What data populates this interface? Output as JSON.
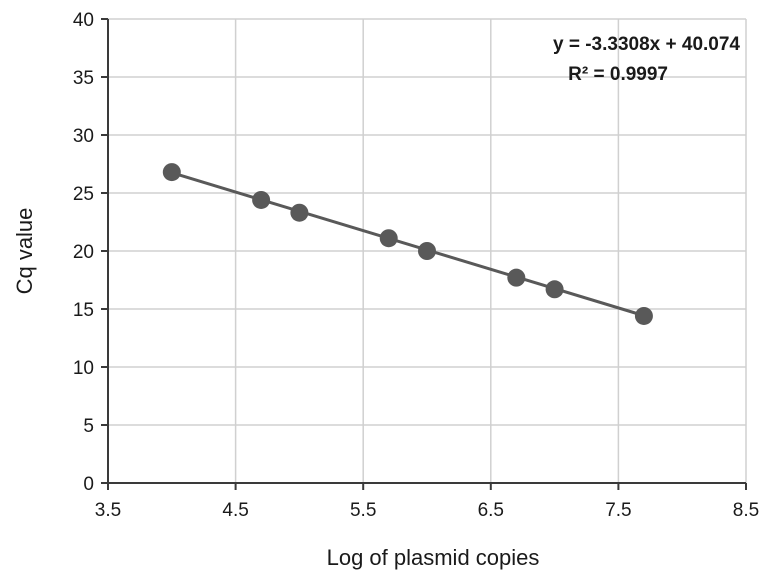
{
  "chart_data": {
    "type": "scatter",
    "title": "",
    "xlabel": "Log of plasmid copies",
    "ylabel": "Cq value",
    "xlim": [
      3.5,
      8.5
    ],
    "ylim": [
      0,
      40
    ],
    "x_ticks": [
      "3.5",
      "4.5",
      "5.5",
      "6.5",
      "7.5",
      "8.5"
    ],
    "y_ticks": [
      "0",
      "5",
      "10",
      "15",
      "20",
      "25",
      "30",
      "35",
      "40"
    ],
    "x_tick_values": [
      3.5,
      4.5,
      5.5,
      6.5,
      7.5,
      8.5
    ],
    "y_tick_values": [
      0,
      5,
      10,
      15,
      20,
      25,
      30,
      35,
      40
    ],
    "grid": true,
    "legend": "none",
    "series": [
      {
        "x": [
          4.0,
          4.7,
          5.0,
          5.7,
          6.0,
          6.7,
          7.0,
          7.7
        ],
        "y": [
          26.8,
          24.4,
          23.3,
          21.1,
          20.0,
          17.7,
          16.7,
          14.4
        ],
        "color": "#595959"
      }
    ],
    "trendline": {
      "slope": -3.3308,
      "intercept": 40.074,
      "x_range": [
        4.0,
        7.7
      ],
      "color": "#595959"
    },
    "annotations": {
      "equation": "y = -3.3308x + 40.074",
      "r_squared": "R² = 0.9997"
    }
  }
}
